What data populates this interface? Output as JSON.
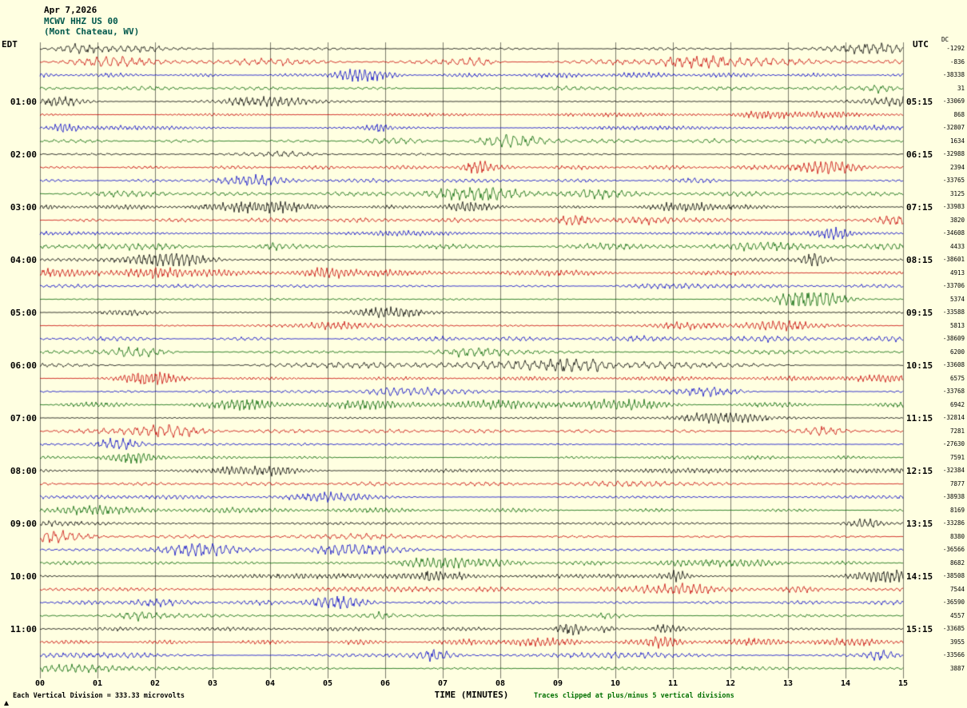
{
  "header": {
    "date": "Apr 7,2026",
    "station": "MCWV HHZ US 00",
    "location": "(Mont Chateau, WV)"
  },
  "corner_labels": {
    "left": "EDT",
    "right": "UTC",
    "dc": "DC"
  },
  "footer": {
    "scale": "Each Vertical Division =  333.33 microvolts",
    "xlabel": "TIME (MINUTES)",
    "clip": "Traces clipped at plus/minus 5 vertical divisions"
  },
  "chart_data": {
    "type": "line",
    "subtype": "helicorder-seismogram",
    "title": "MCWV HHZ US 00 (Mont Chateau, WV) Apr 7,2026",
    "station_code": "MCWV",
    "channel": "HHZ",
    "network": "US",
    "location_code": "00",
    "site": "Mont Chateau, WV",
    "date": "Apr 7,2026",
    "rows": 48,
    "minutes_per_row": 15,
    "x_axis_label": "TIME (MINUTES)",
    "x_range_minutes": [
      0,
      15
    ],
    "x_ticks": [
      "00",
      "01",
      "02",
      "03",
      "04",
      "05",
      "06",
      "07",
      "08",
      "09",
      "10",
      "11",
      "12",
      "13",
      "14",
      "15"
    ],
    "row_colors_cycle": [
      "#000000",
      "#c80000",
      "#0000c8",
      "#006400"
    ],
    "left_timezone": "EDT",
    "right_timezone": "UTC",
    "left_hour_labels_edt": [
      "01:00",
      "02:00",
      "03:00",
      "04:00",
      "05:00",
      "06:00",
      "07:00",
      "08:00",
      "09:00",
      "10:00",
      "11:00"
    ],
    "right_hour_labels_utc": [
      "05:15",
      "06:15",
      "07:15",
      "08:15",
      "09:15",
      "10:15",
      "11:15",
      "12:15",
      "13:15",
      "14:15",
      "15:15"
    ],
    "hour_label_first_row": 4,
    "hour_label_row_step": 4,
    "dc_offsets": [
      -1292,
      -836,
      -38338,
      31,
      -33069,
      868,
      -32807,
      1634,
      -32988,
      2394,
      -33765,
      3125,
      -33983,
      3820,
      -34608,
      4433,
      -38601,
      4913,
      -33706,
      5374,
      -33588,
      5813,
      -38609,
      6200,
      -33608,
      6575,
      -33768,
      6942,
      -32814,
      7281,
      -27630,
      7591,
      -32384,
      7877,
      -38938,
      8169,
      -33286,
      8380,
      -36566,
      8682,
      -38508,
      7544,
      -36590,
      4557,
      -33685,
      3955,
      -33566,
      3887
    ],
    "microvolts_per_division": 333.33,
    "clip_divisions": 5,
    "grid": "vertical gridlines every 1 minute",
    "waveform_note": "continuous broadband seismic noise traces; individual sample values not resolvable from image"
  }
}
